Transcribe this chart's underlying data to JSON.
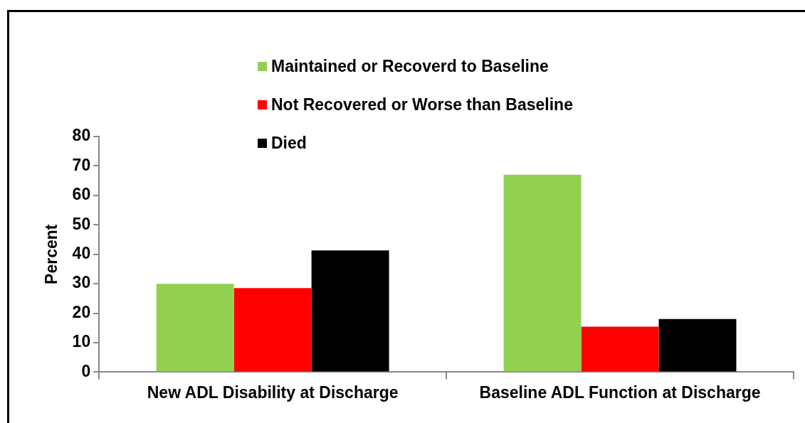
{
  "chart_data": {
    "type": "bar",
    "ylabel": "Percent",
    "categories": [
      "New ADL Disability at Discharge",
      "Baseline ADL Function at Discharge"
    ],
    "series": [
      {
        "name": "Maintained or Recoverd to Baseline",
        "color": "#92d050",
        "values": [
          30,
          67
        ]
      },
      {
        "name": "Not Recovered or Worse than Baseline",
        "color": "#ff0000",
        "values": [
          28.5,
          15.4
        ]
      },
      {
        "name": "Died",
        "color": "#000000",
        "values": [
          41.3,
          18
        ]
      }
    ],
    "ylim": [
      0,
      80
    ],
    "yticks": [
      0,
      10,
      20,
      30,
      40,
      50,
      60,
      70,
      80
    ],
    "grid": false,
    "legend": "top"
  }
}
